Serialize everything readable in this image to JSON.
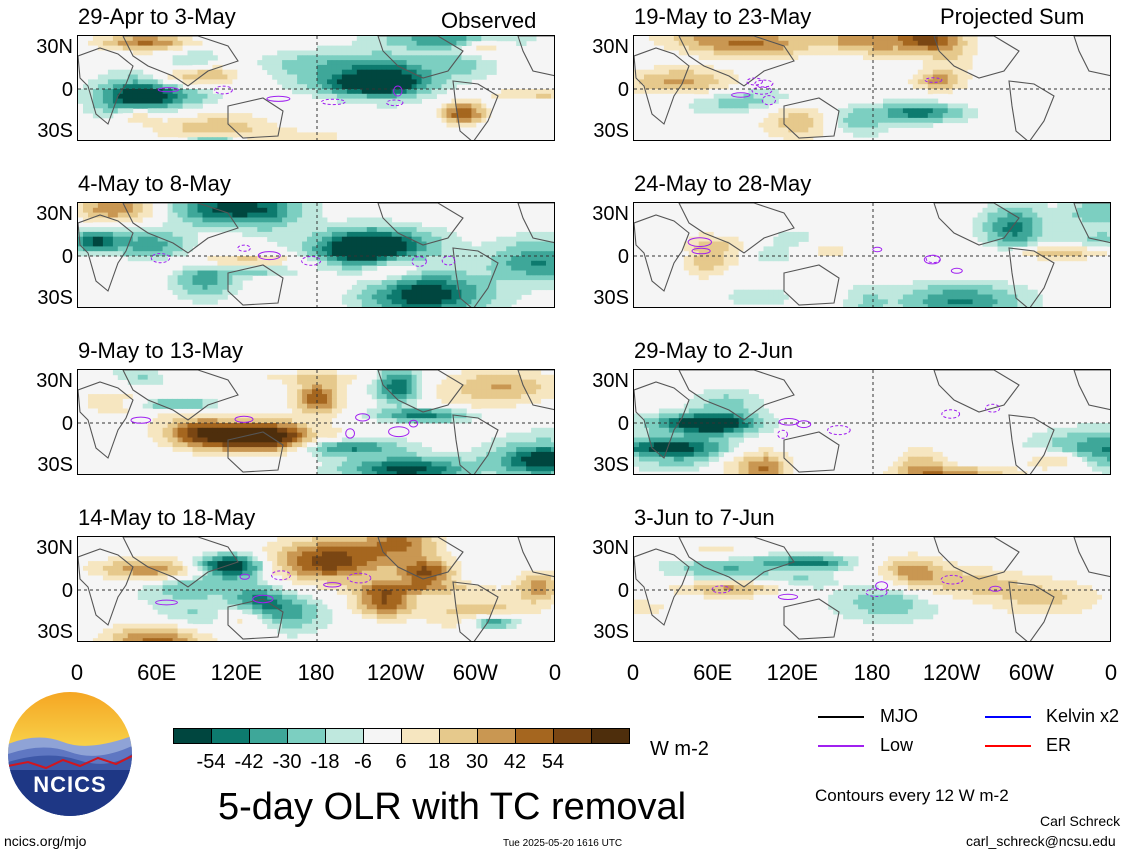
{
  "column_labels": {
    "left": "Observed",
    "right": "Projected Sum"
  },
  "panels": {
    "left": [
      {
        "title": "29-Apr to 3-May"
      },
      {
        "title": "4-May to 8-May"
      },
      {
        "title": "9-May to 13-May"
      },
      {
        "title": "14-May to 18-May"
      }
    ],
    "right": [
      {
        "title": "19-May to 23-May"
      },
      {
        "title": "24-May to 28-May"
      },
      {
        "title": "29-May to 2-Jun"
      },
      {
        "title": "3-Jun to 7-Jun"
      }
    ]
  },
  "lat_labels": [
    "30N",
    "0",
    "30S"
  ],
  "lon_labels": [
    "0",
    "60E",
    "120E",
    "180",
    "120W",
    "60W",
    "0"
  ],
  "colorbar": {
    "colors": [
      "#00463f",
      "#0d7a6e",
      "#3ea799",
      "#7ccfc1",
      "#bfe8de",
      "#f5f5f5",
      "#f6e6c0",
      "#e6c98c",
      "#c99752",
      "#a5661f",
      "#7a4613",
      "#4e2e0c"
    ],
    "labels": [
      "-54",
      "-42",
      "-30",
      "-18",
      "-6",
      "6",
      "18",
      "30",
      "42",
      "54"
    ]
  },
  "units": "W m-2",
  "title": "5-day OLR with TC removal",
  "legend": [
    {
      "label": "MJO",
      "color": "#000000"
    },
    {
      "label": "Kelvin x2",
      "color": "#0000ff"
    },
    {
      "label": "Low",
      "color": "#a020f0"
    },
    {
      "label": "ER",
      "color": "#ff0000"
    }
  ],
  "contours_note": "Contours every 12 W m-2",
  "author": "Carl Schreck",
  "email": "carl_schreck@ncsu.edu",
  "website": "ncics.org/mjo",
  "timestamp": "Tue 2025-05-20 1616 UTC",
  "logo_text": "NCICS"
}
